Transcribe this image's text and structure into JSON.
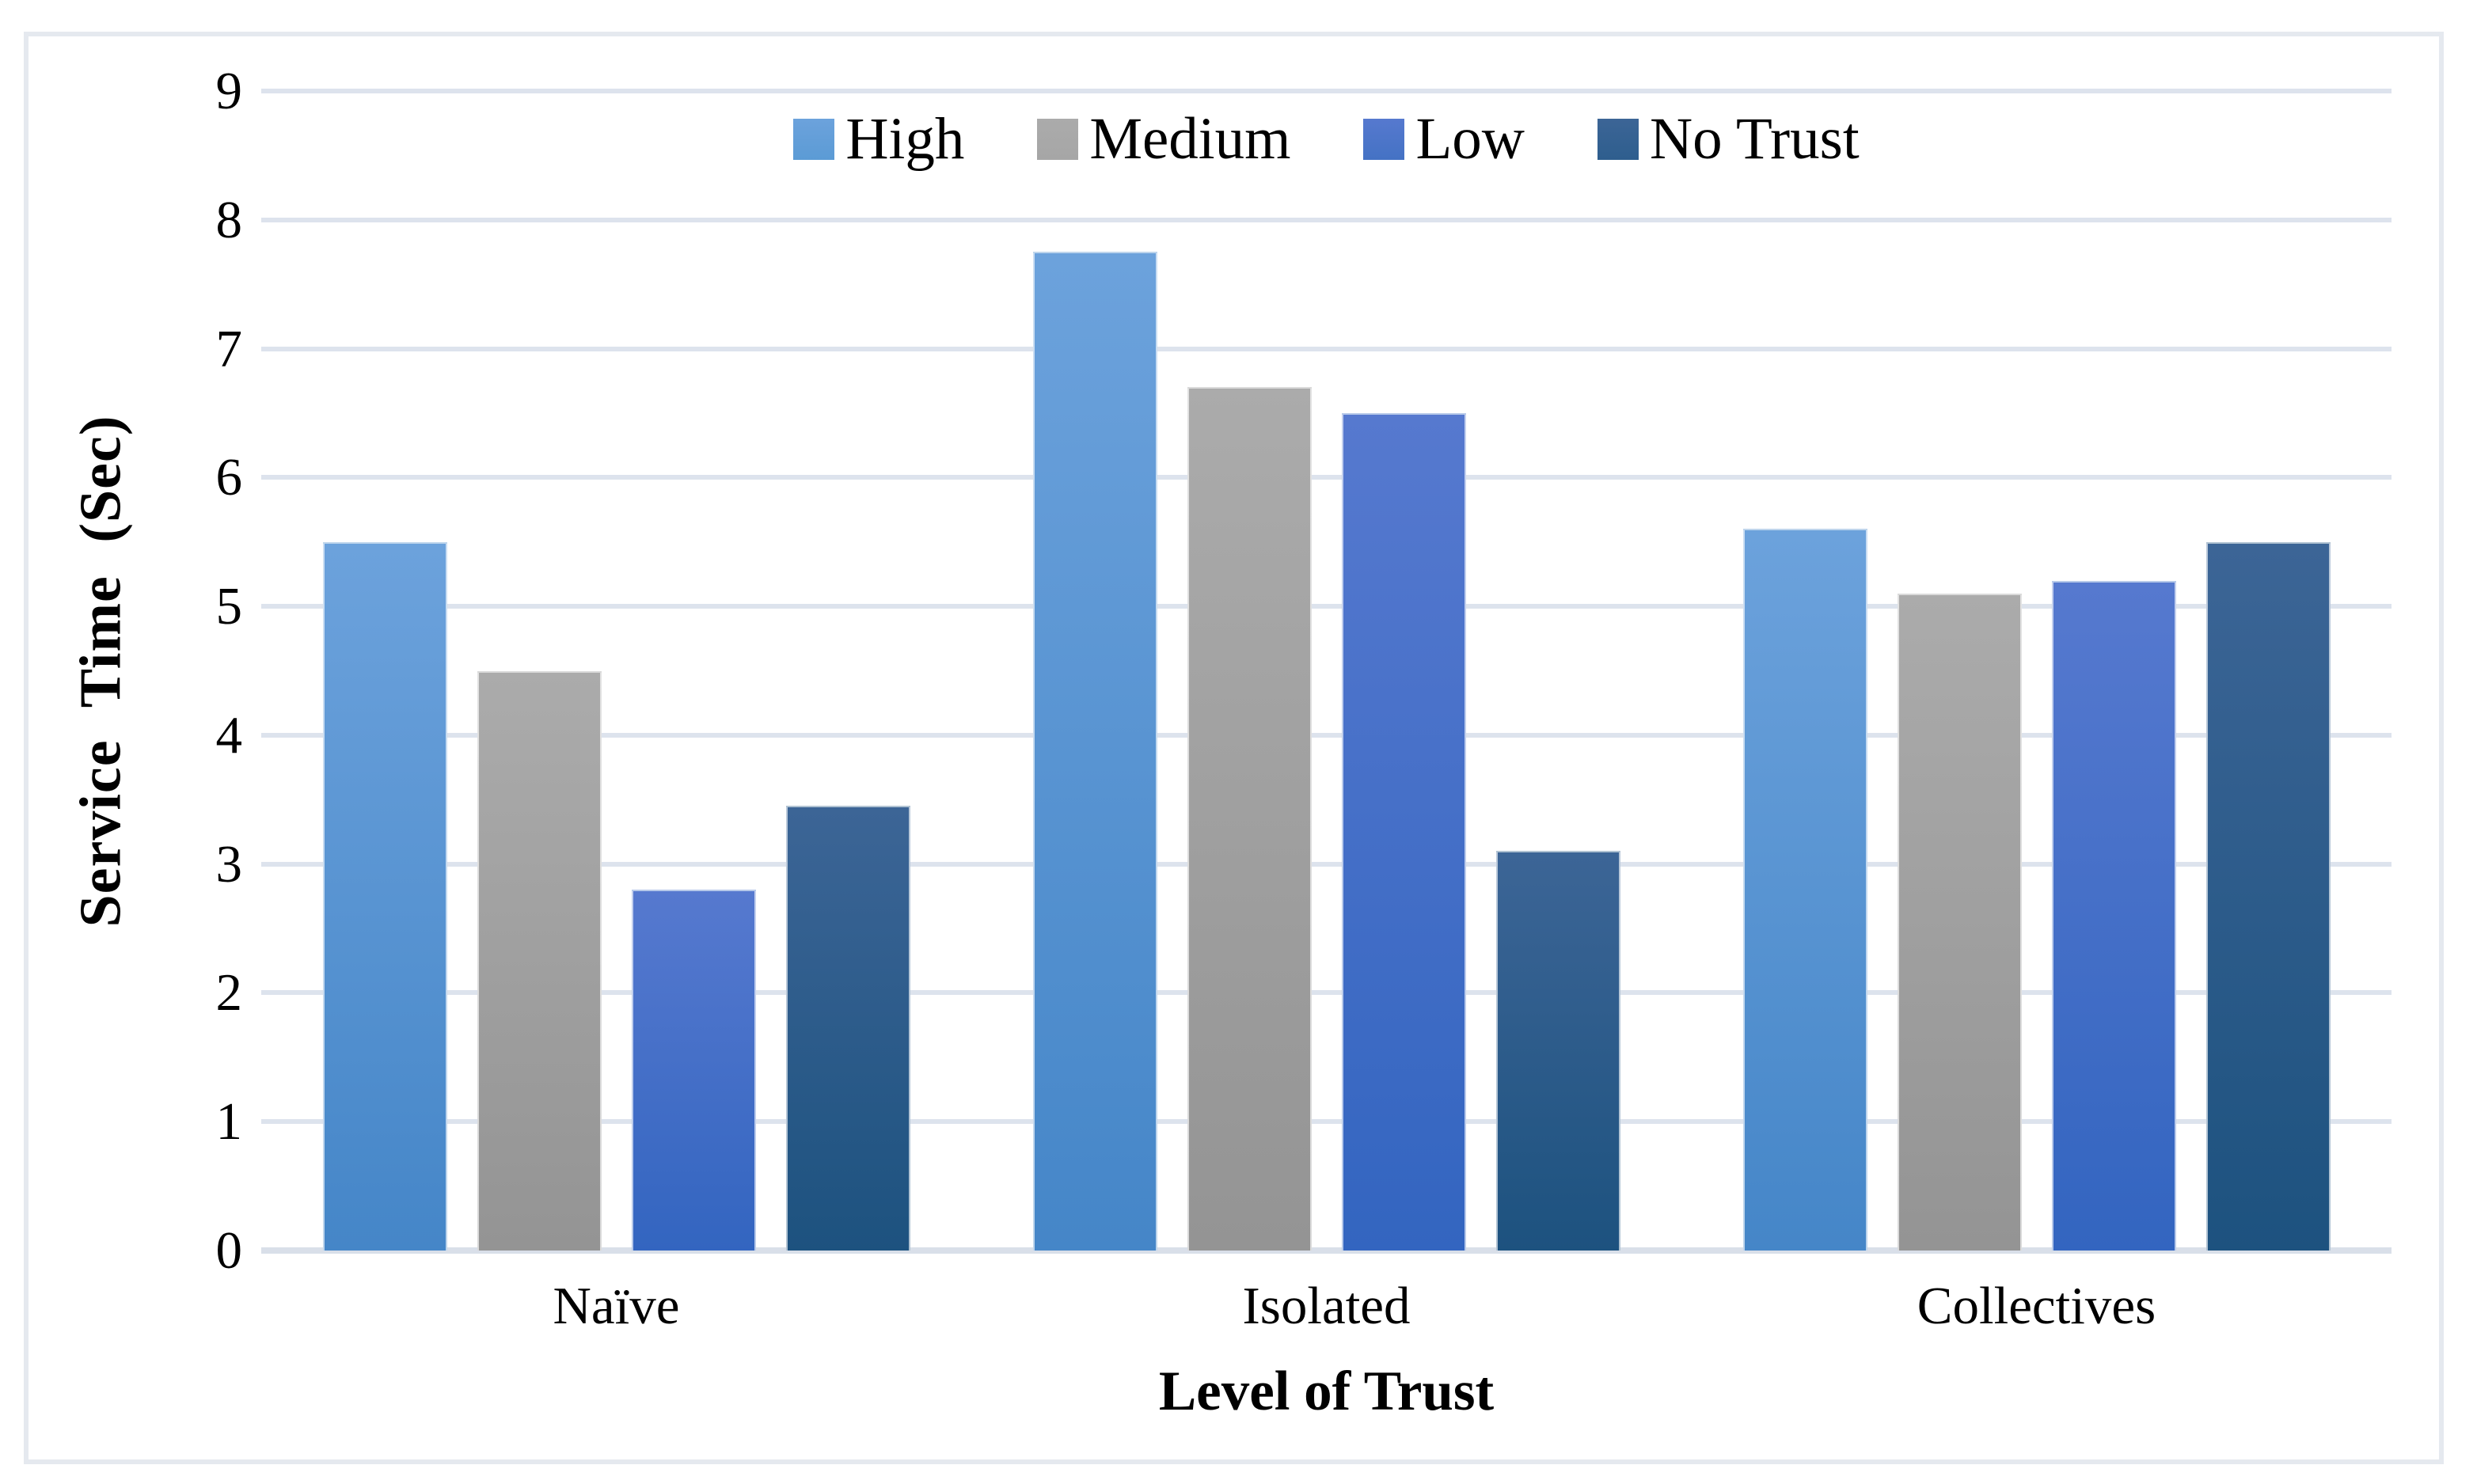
{
  "figure": {
    "background": "#ffffff",
    "frame_border_color": "#e5e9ef"
  },
  "chart_data": {
    "type": "bar",
    "title": "",
    "xlabel": "Level of Trust",
    "ylabel": "Service Time (Sec)",
    "categories": [
      "Naïve",
      "Isolated",
      "Collectives"
    ],
    "series": [
      {
        "name": "High",
        "values": [
          5.5,
          7.75,
          5.6
        ],
        "legend_color": "#5B9BD5",
        "fill_top": "#6CA2DC",
        "fill_bottom": "#4586C8"
      },
      {
        "name": "Medium",
        "values": [
          4.5,
          6.7,
          5.1
        ],
        "legend_color": "#A6A6A6",
        "fill_top": "#ABABAB",
        "fill_bottom": "#949494"
      },
      {
        "name": "Low",
        "values": [
          2.8,
          6.5,
          5.2
        ],
        "legend_color": "#4472C4",
        "fill_top": "#5679CF",
        "fill_bottom": "#3365C0"
      },
      {
        "name": "No Trust",
        "values": [
          3.45,
          3.1,
          5.5
        ],
        "legend_color": "#2E5E8E",
        "fill_top": "#3C6596",
        "fill_bottom": "#1D527F"
      }
    ],
    "ylim": [
      0,
      9
    ],
    "ytick_step": 1,
    "yticks": [
      0,
      1,
      2,
      3,
      4,
      5,
      6,
      7,
      8,
      9
    ],
    "grid": true,
    "gridline_color": "#dde3ed",
    "legend_position": "top-center"
  }
}
